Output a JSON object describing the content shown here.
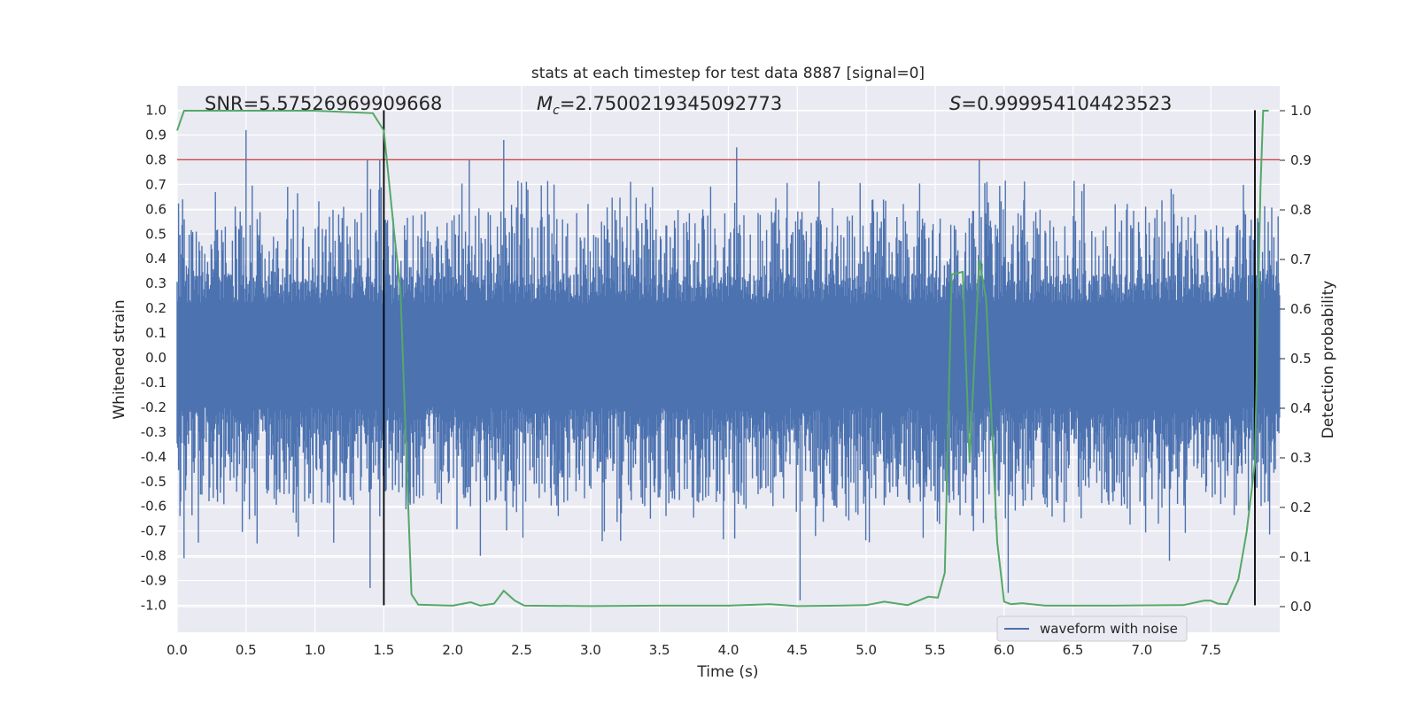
{
  "chart_data": {
    "type": "line",
    "title": "stats at each timestep for test data 8887 [signal=0]",
    "xlabel": "Time (s)",
    "ylabel_left": "Whitened strain",
    "ylabel_right": "Detection probability",
    "xlim": [
      0,
      8.0
    ],
    "ylim_left": [
      -1.08,
      1.1
    ],
    "ylim_right": [
      -0.04,
      1.0
    ],
    "x_ticks": [
      "0.0",
      "0.5",
      "1.0",
      "1.5",
      "2.0",
      "2.5",
      "3.0",
      "3.5",
      "4.0",
      "4.5",
      "5.0",
      "5.5",
      "6.0",
      "6.5",
      "7.0",
      "7.5"
    ],
    "y_ticks_left": [
      "1.0",
      "0.9",
      "0.8",
      "0.7",
      "0.6",
      "0.5",
      "0.4",
      "0.3",
      "0.2",
      "0.1",
      "0.0",
      "-0.1",
      "-0.2",
      "-0.3",
      "-0.4",
      "-0.5",
      "-0.6",
      "-0.7",
      "-0.8",
      "-0.9",
      "-1.0"
    ],
    "y_ticks_right": [
      "1.0",
      "0.9",
      "0.8",
      "0.7",
      "0.6",
      "0.5",
      "0.4",
      "0.3",
      "0.2",
      "0.1",
      "0.0"
    ],
    "grid": true,
    "legend_position": "lower-right",
    "annotations": {
      "snr": "SNR=5.57526969909668",
      "mc_symbol": "M",
      "mc_sub": "c",
      "mc_value": "=2.7500219345092773",
      "s_symbol": "S",
      "s_value": "=0.999954104423523"
    },
    "threshold": {
      "value": 0.8,
      "color": "#c44e52"
    },
    "vertical_markers": [
      1.5,
      7.82
    ],
    "waveform": {
      "name": "waveform with noise",
      "color": "#4c72b0",
      "envelope_top": 0.22,
      "envelope_bottom": -0.2,
      "typical_peak": [
        0.3,
        0.6
      ],
      "typical_trough": [
        -0.35,
        -0.6
      ],
      "spikes": [
        {
          "x": 0.04,
          "y": 0.64
        },
        {
          "x": 0.05,
          "y": -0.81
        },
        {
          "x": 0.5,
          "y": 0.92
        },
        {
          "x": 0.58,
          "y": -0.75
        },
        {
          "x": 1.38,
          "y": 0.8
        },
        {
          "x": 1.4,
          "y": -0.93
        },
        {
          "x": 1.47,
          "y": 0.8
        },
        {
          "x": 2.12,
          "y": 0.8
        },
        {
          "x": 2.2,
          "y": -0.8
        },
        {
          "x": 2.37,
          "y": 0.88
        },
        {
          "x": 4.06,
          "y": 0.85
        },
        {
          "x": 4.52,
          "y": -0.98
        },
        {
          "x": 5.82,
          "y": 0.8
        },
        {
          "x": 6.03,
          "y": -0.95
        },
        {
          "x": 7.2,
          "y": -0.82
        }
      ]
    },
    "detection_probability": {
      "color": "#55a868",
      "x": [
        0.0,
        0.05,
        0.5,
        1.0,
        1.42,
        1.5,
        1.58,
        1.62,
        1.7,
        1.75,
        2.0,
        2.13,
        2.2,
        2.3,
        2.37,
        2.45,
        2.52,
        3.0,
        3.5,
        4.0,
        4.3,
        4.5,
        4.8,
        5.0,
        5.13,
        5.3,
        5.45,
        5.52,
        5.57,
        5.62,
        5.7,
        5.75,
        5.82,
        5.87,
        5.95,
        6.0,
        6.05,
        6.13,
        6.3,
        6.8,
        7.3,
        7.45,
        7.5,
        7.55,
        7.62,
        7.7,
        7.76,
        7.82,
        7.86,
        7.88,
        7.92
      ],
      "y": [
        0.96,
        1.0,
        1.0,
        1.0,
        0.995,
        0.96,
        0.74,
        0.64,
        0.025,
        0.004,
        0.002,
        0.009,
        0.002,
        0.006,
        0.032,
        0.012,
        0.002,
        0.001,
        0.002,
        0.002,
        0.005,
        0.001,
        0.002,
        0.003,
        0.01,
        0.003,
        0.02,
        0.018,
        0.068,
        0.67,
        0.675,
        0.29,
        0.7,
        0.62,
        0.13,
        0.01,
        0.005,
        0.007,
        0.002,
        0.002,
        0.003,
        0.012,
        0.012,
        0.006,
        0.005,
        0.055,
        0.15,
        0.29,
        0.84,
        1.0,
        1.0
      ]
    }
  }
}
